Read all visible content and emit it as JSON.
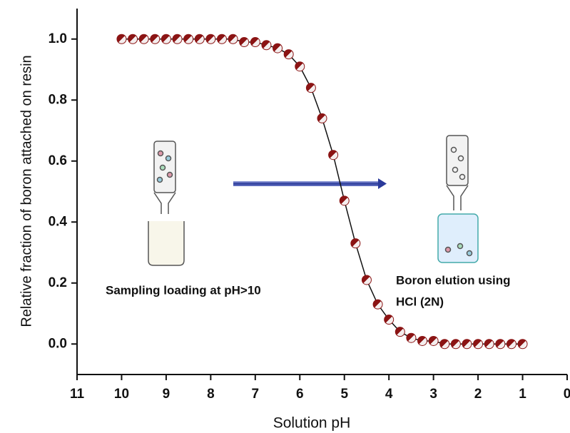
{
  "chart_data": {
    "type": "scatter",
    "x_label": "Solution pH",
    "y_label": "Relative fraction of boron attached on resin",
    "xlim": [
      11,
      0
    ],
    "ylim": [
      -0.1,
      1.1
    ],
    "xticks": [
      11,
      10,
      9,
      8,
      7,
      6,
      5,
      4,
      3,
      2,
      1,
      0
    ],
    "yticks": [
      {
        "value": 0,
        "label": "0.0"
      },
      {
        "value": 0.2,
        "label": "0.2"
      },
      {
        "value": 0.4,
        "label": "0.4"
      },
      {
        "value": 0.6,
        "label": "0.6"
      },
      {
        "value": 0.8,
        "label": "0.8"
      },
      {
        "value": 1,
        "label": "1.0"
      }
    ],
    "series": [
      {
        "color": "#8b1414",
        "x": [
          10,
          9.75,
          9.5,
          9.25,
          9,
          8.75,
          8.5,
          8.25,
          8,
          7.75,
          7.5,
          7.25,
          7,
          6.75,
          6.5,
          6.25,
          6,
          5.75,
          5.5,
          5.25,
          5,
          4.75,
          4.5,
          4.25,
          4,
          3.75,
          3.5,
          3.25,
          3,
          2.75,
          2.5,
          2.25,
          2,
          1.75,
          1.5,
          1.25,
          1
        ],
        "values": [
          1.0,
          1.0,
          1.0,
          1.0,
          1.0,
          1.0,
          1.0,
          1.0,
          1.0,
          1.0,
          1.0,
          0.99,
          0.99,
          0.98,
          0.97,
          0.95,
          0.91,
          0.84,
          0.74,
          0.62,
          0.47,
          0.33,
          0.21,
          0.13,
          0.08,
          0.04,
          0.02,
          0.01,
          0.01,
          0.0,
          0.0,
          0.0,
          0.0,
          0.0,
          0.0,
          0.0,
          0.0
        ]
      }
    ],
    "annotations": [
      "Sampling loading at pH>10",
      "Boron elution using",
      "HCl (2N)"
    ]
  }
}
